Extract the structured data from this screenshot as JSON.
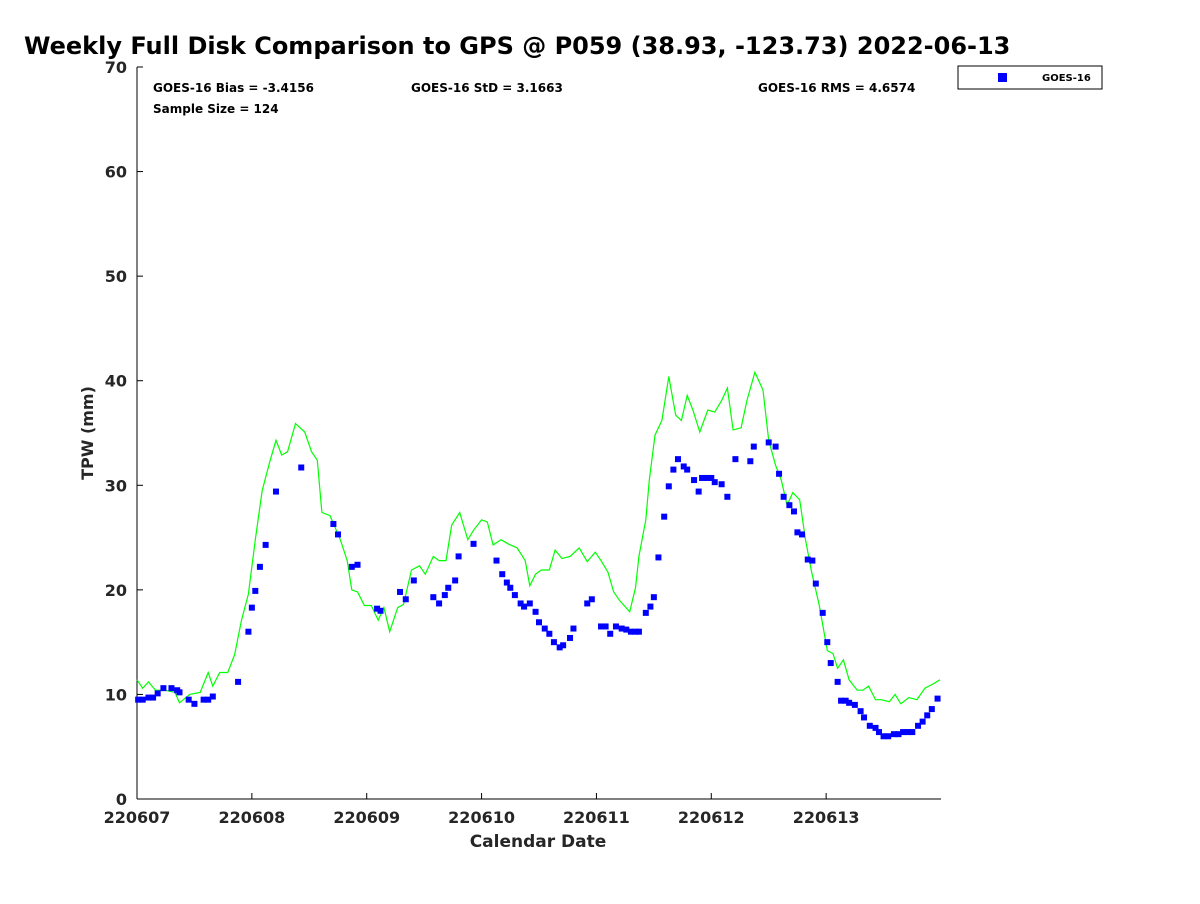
{
  "chart_data": {
    "type": "scatter",
    "title": "Weekly Full Disk Comparison to GPS @ P059 (38.93, -123.73) 2022-06-13",
    "xlabel": "Calendar Date",
    "ylabel": "TPW (mm)",
    "xlim": [
      0,
      7
    ],
    "ylim": [
      0,
      70
    ],
    "x_unit": "days since 220607",
    "xticks": [
      {
        "value": 0,
        "label": "220607"
      },
      {
        "value": 1,
        "label": "220608"
      },
      {
        "value": 2,
        "label": "220609"
      },
      {
        "value": 3,
        "label": "220610"
      },
      {
        "value": 4,
        "label": "220611"
      },
      {
        "value": 5,
        "label": "220612"
      },
      {
        "value": 6,
        "label": "220613"
      }
    ],
    "yticks": [
      0,
      10,
      20,
      30,
      40,
      50,
      60,
      70
    ],
    "stats": {
      "bias": "GOES-16 Bias = -3.4156",
      "std": "GOES-16 StD = 3.1663",
      "rms": "GOES-16 RMS = 4.6574",
      "sample": "Sample Size = 124"
    },
    "legend": {
      "position": "top-right",
      "entries": [
        {
          "label": "GOES-16",
          "color": "#0000ff",
          "marker": "square"
        }
      ]
    },
    "series": [
      {
        "name": "GOES-16",
        "type": "scatter",
        "color": "#0000ff",
        "x": [
          0.01,
          0.05,
          0.1,
          0.14,
          0.18,
          0.23,
          0.3,
          0.35,
          0.37,
          0.45,
          0.5,
          0.58,
          0.62,
          0.66,
          0.88,
          0.97,
          1.0,
          1.03,
          1.07,
          1.12,
          1.21,
          1.43,
          1.71,
          1.75,
          1.87,
          1.92,
          2.09,
          2.12,
          2.29,
          2.34,
          2.41,
          2.58,
          2.63,
          2.68,
          2.71,
          2.77,
          2.8,
          2.93,
          3.13,
          3.18,
          3.22,
          3.25,
          3.29,
          3.34,
          3.37,
          3.42,
          3.47,
          3.5,
          3.55,
          3.59,
          3.63,
          3.68,
          3.71,
          3.77,
          3.8,
          3.92,
          3.96,
          4.04,
          4.08,
          4.12,
          4.17,
          4.22,
          4.26,
          4.3,
          4.34,
          4.37,
          4.43,
          4.47,
          4.5,
          4.54,
          4.59,
          4.63,
          4.67,
          4.71,
          4.76,
          4.79,
          4.85,
          4.89,
          4.92,
          4.97,
          5.0,
          5.03,
          5.09,
          5.14,
          5.21,
          5.34,
          5.37,
          5.5,
          5.56,
          5.59,
          5.63,
          5.68,
          5.72,
          5.75,
          5.79,
          5.84,
          5.88,
          5.91,
          5.97,
          6.01,
          6.04,
          6.1,
          6.13,
          6.17,
          6.2,
          6.25,
          6.3,
          6.33,
          6.38,
          6.43,
          6.46,
          6.5,
          6.54,
          6.59,
          6.63,
          6.67,
          6.71,
          6.75,
          6.8,
          6.84,
          6.88,
          6.92,
          6.97
        ],
        "y": [
          9.5,
          9.5,
          9.7,
          9.7,
          10.1,
          10.6,
          10.6,
          10.4,
          10.2,
          9.5,
          9.1,
          9.5,
          9.5,
          9.8,
          11.2,
          16,
          18.3,
          19.9,
          22.2,
          24.3,
          29.4,
          31.7,
          26.3,
          25.3,
          22.2,
          22.4,
          18.2,
          18,
          19.8,
          19.1,
          20.9,
          19.3,
          18.7,
          19.5,
          20.2,
          20.9,
          23.2,
          24.4,
          22.8,
          21.5,
          20.7,
          20.2,
          19.5,
          18.7,
          18.4,
          18.7,
          17.9,
          16.9,
          16.3,
          15.8,
          15,
          14.5,
          14.7,
          15.4,
          16.3,
          18.7,
          19.1,
          16.5,
          16.5,
          15.8,
          16.5,
          16.3,
          16.2,
          16,
          16,
          16,
          17.8,
          18.4,
          19.3,
          23.1,
          27,
          29.9,
          31.5,
          32.5,
          31.8,
          31.5,
          30.5,
          29.4,
          30.7,
          30.7,
          30.7,
          30.3,
          30.1,
          28.9,
          32.5,
          32.3,
          33.7,
          34.1,
          33.7,
          31.1,
          28.9,
          28.1,
          27.5,
          25.5,
          25.3,
          22.9,
          22.8,
          20.6,
          17.8,
          15,
          13,
          11.2,
          9.4,
          9.4,
          9.2,
          9,
          8.4,
          7.8,
          7,
          6.8,
          6.4,
          6,
          6,
          6.2,
          6.2,
          6.4,
          6.4,
          6.4,
          7,
          7.4,
          8,
          8.6,
          9.6
        ]
      },
      {
        "name": "GPS",
        "type": "line",
        "color": "#00ff00",
        "x": [
          0,
          0.05,
          0.1,
          0.16,
          0.24,
          0.33,
          0.37,
          0.46,
          0.55,
          0.62,
          0.66,
          0.72,
          0.79,
          0.85,
          0.91,
          0.97,
          1.03,
          1.09,
          1.16,
          1.21,
          1.26,
          1.31,
          1.38,
          1.46,
          1.52,
          1.57,
          1.61,
          1.68,
          1.77,
          1.83,
          1.87,
          1.92,
          1.98,
          2.04,
          2.1,
          2.15,
          2.2,
          2.27,
          2.32,
          2.39,
          2.46,
          2.51,
          2.58,
          2.63,
          2.69,
          2.74,
          2.81,
          2.88,
          2.93,
          3.0,
          3.05,
          3.1,
          3.17,
          3.23,
          3.31,
          3.38,
          3.42,
          3.47,
          3.52,
          3.59,
          3.64,
          3.7,
          3.77,
          3.85,
          3.92,
          3.99,
          4.04,
          4.1,
          4.15,
          4.2,
          4.29,
          4.34,
          4.37,
          4.43,
          4.46,
          4.51,
          4.57,
          4.63,
          4.69,
          4.74,
          4.79,
          4.84,
          4.9,
          4.97,
          5.03,
          5.09,
          5.14,
          5.19,
          5.26,
          5.31,
          5.38,
          5.45,
          5.5,
          5.56,
          5.61,
          5.66,
          5.71,
          5.77,
          5.82,
          5.87,
          5.94,
          6.01,
          6.06,
          6.1,
          6.15,
          6.2,
          6.27,
          6.32,
          6.37,
          6.43,
          6.48,
          6.55,
          6.6,
          6.65,
          6.72,
          6.79,
          6.86,
          6.93,
          6.99
        ],
        "y": [
          11.4,
          10.6,
          11.2,
          10.4,
          10.4,
          10.2,
          9.2,
          10,
          10.2,
          12.1,
          10.8,
          12.1,
          12.1,
          13.8,
          17.1,
          19.6,
          24.8,
          29.5,
          32.4,
          34.3,
          32.9,
          33.2,
          35.9,
          35.1,
          33.2,
          32.4,
          27.4,
          27.1,
          24.8,
          22.8,
          20,
          19.8,
          18.5,
          18.5,
          17.1,
          18.3,
          16,
          18.3,
          18.6,
          21.9,
          22.3,
          21.5,
          23.2,
          22.8,
          22.8,
          26.2,
          27.4,
          24.8,
          25.7,
          26.7,
          26.5,
          24.3,
          24.8,
          24.4,
          24,
          22.8,
          20.4,
          21.5,
          21.9,
          21.9,
          23.8,
          23,
          23.2,
          24,
          22.7,
          23.6,
          22.8,
          21.7,
          19.8,
          19,
          17.9,
          20.2,
          23.2,
          26.7,
          30.5,
          34.8,
          36.2,
          40.4,
          36.7,
          36.2,
          38.6,
          37.2,
          35.1,
          37.2,
          37,
          38.1,
          39.3,
          35.3,
          35.5,
          38.1,
          40.8,
          39.1,
          34.3,
          31.9,
          30.5,
          28.1,
          29.3,
          28.6,
          24.8,
          21.9,
          18.5,
          14.2,
          13.9,
          12.5,
          13.3,
          11.4,
          10.4,
          10.4,
          10.8,
          9.5,
          9.5,
          9.3,
          10,
          9.1,
          9.7,
          9.5,
          10.6,
          11,
          11.4
        ]
      }
    ]
  }
}
